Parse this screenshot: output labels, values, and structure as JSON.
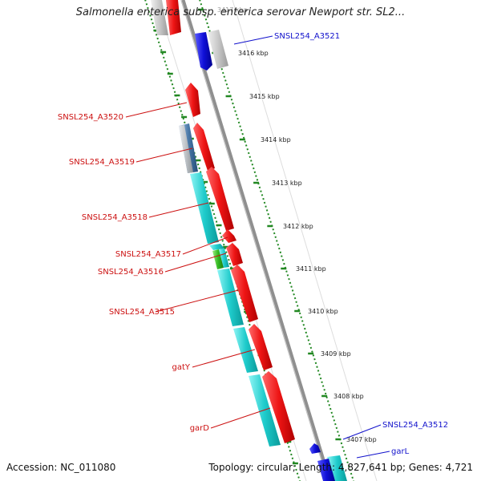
{
  "title": "Salmonella enterica subsp. enterica serovar Newport str. SL2...",
  "accession": "Accession: NC_011080",
  "topology": "Topology: circular; Length: 4,827,641 bp; Genes: 4,721",
  "colors": {
    "forward": "#e8141c",
    "reverse": "#1010c8",
    "label_forward": "#cc1111",
    "label_reverse": "#1111cc",
    "cds_match": "#22cccc",
    "partial_match": "#4477aa",
    "green_match": "#33bb22",
    "backbone": "#888888",
    "tick": "#228822"
  },
  "ticks": [
    "3417 kbp",
    "3416 kbp",
    "3415 kbp",
    "3414 kbp",
    "3413 kbp",
    "3412 kbp",
    "3411 kbp",
    "3410 kbp",
    "3409 kbp",
    "3408 kbp",
    "3407 kbp"
  ],
  "gene_labels": {
    "A3521": "SNSL254_A3521",
    "A3520": "SNSL254_A3520",
    "A3519": "SNSL254_A3519",
    "A3518": "SNSL254_A3518",
    "A3517": "SNSL254_A3517",
    "A3516": "SNSL254_A3516",
    "A3515": "SNSL254_A3515",
    "gatY": "gatY",
    "garD": "garD",
    "A3512": "SNSL254_A3512",
    "garL": "garL"
  }
}
